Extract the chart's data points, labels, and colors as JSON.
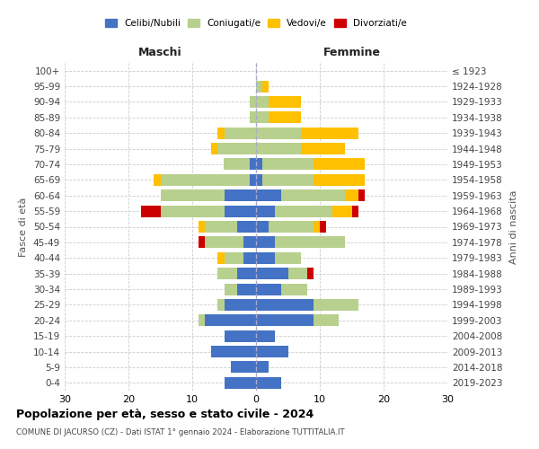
{
  "age_groups": [
    "0-4",
    "5-9",
    "10-14",
    "15-19",
    "20-24",
    "25-29",
    "30-34",
    "35-39",
    "40-44",
    "45-49",
    "50-54",
    "55-59",
    "60-64",
    "65-69",
    "70-74",
    "75-79",
    "80-84",
    "85-89",
    "90-94",
    "95-99",
    "100+"
  ],
  "birth_years": [
    "2019-2023",
    "2014-2018",
    "2009-2013",
    "2004-2008",
    "1999-2003",
    "1994-1998",
    "1989-1993",
    "1984-1988",
    "1979-1983",
    "1974-1978",
    "1969-1973",
    "1964-1968",
    "1959-1963",
    "1954-1958",
    "1949-1953",
    "1944-1948",
    "1939-1943",
    "1934-1938",
    "1929-1933",
    "1924-1928",
    "≤ 1923"
  ],
  "males": {
    "celibi": [
      5,
      4,
      7,
      5,
      8,
      5,
      3,
      3,
      2,
      2,
      3,
      5,
      5,
      1,
      1,
      0,
      0,
      0,
      0,
      0,
      0
    ],
    "coniugati": [
      0,
      0,
      0,
      0,
      1,
      1,
      2,
      3,
      3,
      6,
      5,
      10,
      10,
      14,
      4,
      6,
      5,
      1,
      1,
      0,
      0
    ],
    "vedovi": [
      0,
      0,
      0,
      0,
      0,
      0,
      0,
      0,
      1,
      0,
      1,
      0,
      0,
      1,
      0,
      1,
      1,
      0,
      0,
      0,
      0
    ],
    "divorziati": [
      0,
      0,
      0,
      0,
      0,
      0,
      0,
      0,
      0,
      1,
      0,
      3,
      0,
      0,
      0,
      0,
      0,
      0,
      0,
      0,
      0
    ]
  },
  "females": {
    "nubili": [
      4,
      2,
      5,
      3,
      9,
      9,
      4,
      5,
      3,
      3,
      2,
      3,
      4,
      1,
      1,
      0,
      0,
      0,
      0,
      0,
      0
    ],
    "coniugate": [
      0,
      0,
      0,
      0,
      4,
      7,
      4,
      3,
      4,
      11,
      7,
      9,
      10,
      8,
      8,
      7,
      7,
      2,
      2,
      1,
      0
    ],
    "vedove": [
      0,
      0,
      0,
      0,
      0,
      0,
      0,
      0,
      0,
      0,
      1,
      3,
      2,
      8,
      8,
      7,
      9,
      5,
      5,
      1,
      0
    ],
    "divorziate": [
      0,
      0,
      0,
      0,
      0,
      0,
      0,
      1,
      0,
      0,
      1,
      1,
      1,
      0,
      0,
      0,
      0,
      0,
      0,
      0,
      0
    ]
  },
  "colors": {
    "celibi": "#4472c4",
    "coniugati": "#b8d08d",
    "vedovi": "#ffc000",
    "divorziati": "#cc0000"
  },
  "xlim": 30,
  "title": "Popolazione per età, sesso e stato civile - 2024",
  "subtitle": "COMUNE DI JACURSO (CZ) - Dati ISTAT 1° gennaio 2024 - Elaborazione TUTTITALIA.IT",
  "ylabel_left": "Fasce di età",
  "ylabel_right": "Anni di nascita",
  "xlabel_left": "Maschi",
  "xlabel_right": "Femmine",
  "legend_labels": [
    "Celibi/Nubili",
    "Coniugati/e",
    "Vedovi/e",
    "Divorziati/e"
  ]
}
